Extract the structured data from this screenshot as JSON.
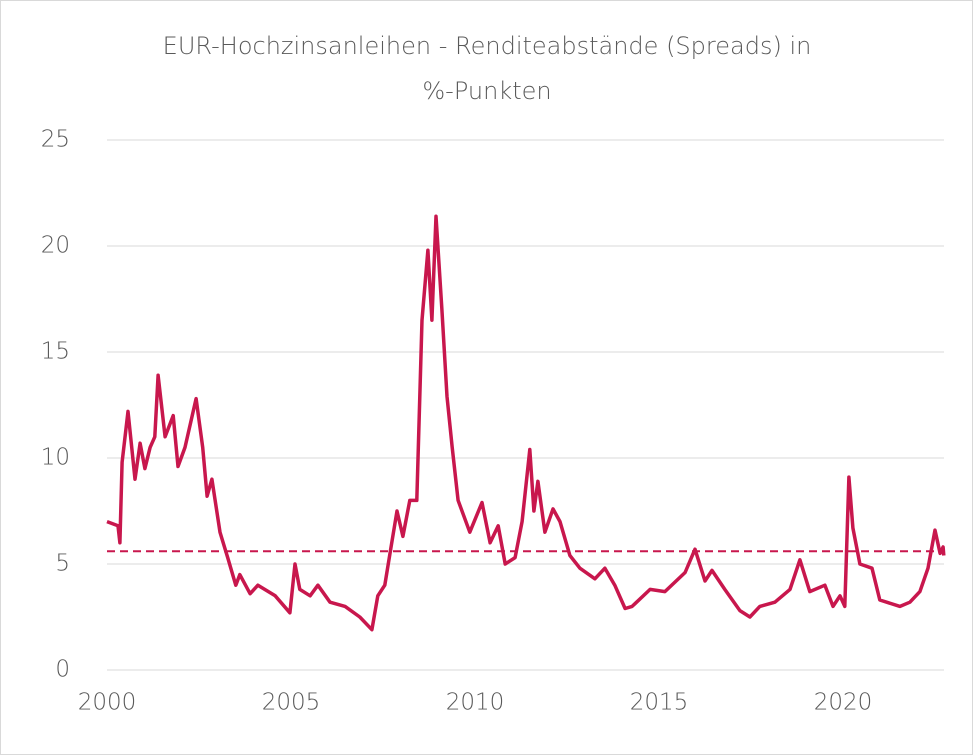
{
  "chart_data": {
    "type": "line",
    "title_lines": [
      "EUR-Hochzinsanleihen - Renditeabstände (Spreads) in",
      "%-Punkten"
    ],
    "x": [
      2000.0,
      2000.3,
      2000.35,
      2000.41,
      2000.57,
      2000.76,
      2000.9,
      2001.03,
      2001.17,
      2001.3,
      2001.39,
      2001.58,
      2001.8,
      2001.93,
      2002.12,
      2002.42,
      2002.6,
      2002.72,
      2002.85,
      2003.07,
      2003.28,
      2003.5,
      2003.61,
      2003.89,
      2004.1,
      2004.57,
      2004.97,
      2005.11,
      2005.24,
      2005.52,
      2005.73,
      2006.06,
      2006.47,
      2006.87,
      2007.2,
      2007.36,
      2007.55,
      2007.69,
      2007.88,
      2008.04,
      2008.23,
      2008.42,
      2008.56,
      2008.72,
      2008.83,
      2008.94,
      2009.1,
      2009.24,
      2009.38,
      2009.54,
      2009.86,
      2010.19,
      2010.41,
      2010.63,
      2010.82,
      2011.09,
      2011.28,
      2011.49,
      2011.6,
      2011.71,
      2011.9,
      2012.12,
      2012.31,
      2012.58,
      2012.85,
      2013.26,
      2013.53,
      2013.8,
      2014.08,
      2014.27,
      2014.76,
      2015.16,
      2015.71,
      2015.98,
      2016.25,
      2016.44,
      2016.79,
      2017.2,
      2017.47,
      2017.74,
      2018.15,
      2018.56,
      2018.83,
      2019.1,
      2019.51,
      2019.73,
      2019.92,
      2020.05,
      2020.16,
      2020.27,
      2020.46,
      2020.79,
      2021.0,
      2021.55,
      2021.82,
      2022.09,
      2022.31,
      2022.5,
      2022.64,
      2022.72,
      2022.74
    ],
    "values": [
      7.0,
      6.8,
      6.0,
      9.8,
      12.2,
      9.0,
      10.7,
      9.5,
      10.5,
      11.0,
      13.9,
      11.0,
      12.0,
      9.6,
      10.5,
      12.8,
      10.5,
      8.2,
      9.0,
      6.5,
      5.3,
      4.0,
      4.5,
      3.6,
      4.0,
      3.5,
      2.7,
      5.0,
      3.8,
      3.5,
      4.0,
      3.2,
      3.0,
      2.5,
      1.9,
      3.5,
      4.0,
      5.5,
      7.5,
      6.3,
      8.0,
      8.0,
      16.5,
      19.8,
      16.5,
      21.4,
      17.0,
      12.9,
      10.5,
      8.0,
      6.5,
      7.9,
      6.0,
      6.8,
      5.0,
      5.3,
      7.0,
      10.4,
      7.5,
      8.9,
      6.5,
      7.6,
      7.0,
      5.4,
      4.8,
      4.3,
      4.8,
      4.0,
      2.9,
      3.0,
      3.8,
      3.7,
      4.6,
      5.7,
      4.2,
      4.7,
      3.8,
      2.8,
      2.5,
      3.0,
      3.2,
      3.8,
      5.2,
      3.7,
      4.0,
      3.0,
      3.5,
      3.0,
      9.1,
      6.7,
      5.0,
      4.8,
      3.3,
      3.0,
      3.2,
      3.7,
      4.8,
      6.6,
      5.5,
      5.8,
      5.4
    ],
    "color": "#c8174d",
    "reference_line": 5.6,
    "xlim": [
      2000,
      2022.8
    ],
    "xticks": [
      2000,
      2005,
      2010,
      2015,
      2020
    ],
    "ylim": [
      0,
      25
    ],
    "yticks": [
      0,
      5,
      10,
      15,
      20,
      25
    ],
    "grid": true
  }
}
